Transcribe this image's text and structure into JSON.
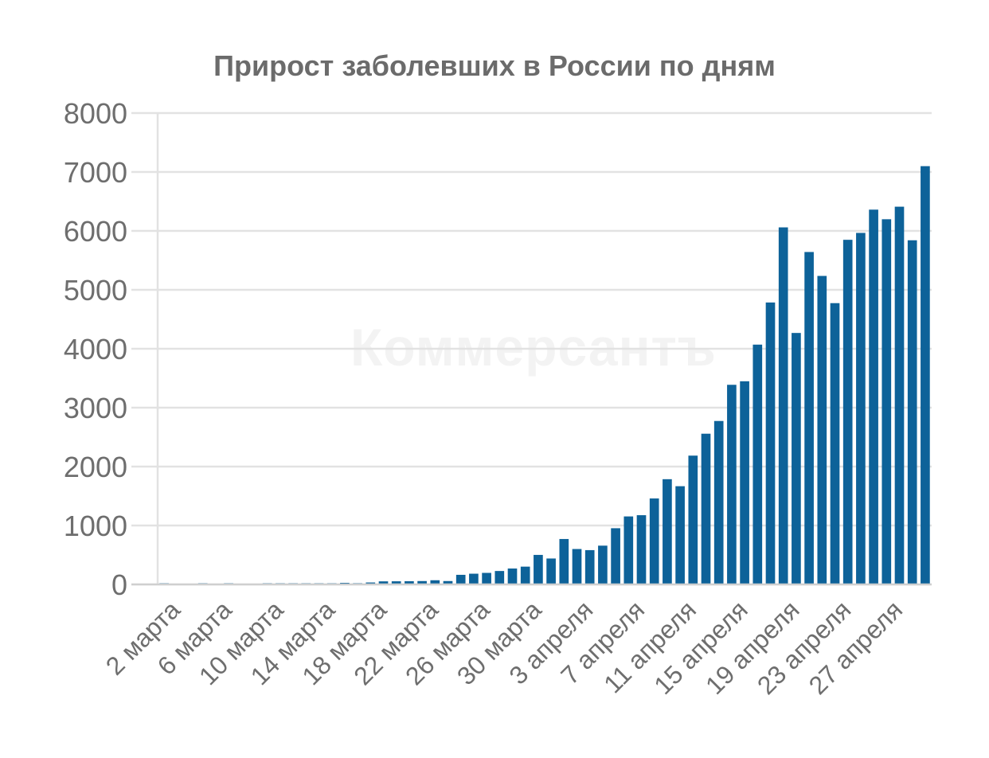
{
  "chart_data": {
    "type": "bar",
    "title": "Прирост заболевших в России по дням",
    "watermark": "Коммерсантъ",
    "bar_color": "#0d6299",
    "grid": true,
    "ylim": [
      0,
      8000
    ],
    "yticks": [
      0,
      1000,
      2000,
      3000,
      4000,
      5000,
      6000,
      7000,
      8000
    ],
    "xtick_labels": [
      "2 марта",
      "6 марта",
      "10 марта",
      "14 марта",
      "18 марта",
      "22 марта",
      "26 марта",
      "30 марта",
      "3 апреля",
      "7 апреля",
      "11 апреля",
      "15 апреля",
      "19 апреля",
      "23 апреля",
      "27 апреля"
    ],
    "categories": [
      "2 марта",
      "3 марта",
      "4 марта",
      "5 марта",
      "6 марта",
      "7 марта",
      "8 марта",
      "9 марта",
      "10 марта",
      "11 марта",
      "12 марта",
      "13 марта",
      "14 марта",
      "15 марта",
      "16 марта",
      "17 марта",
      "18 марта",
      "19 марта",
      "20 марта",
      "21 марта",
      "22 марта",
      "23 марта",
      "24 марта",
      "25 марта",
      "26 марта",
      "27 марта",
      "28 марта",
      "29 марта",
      "30 марта",
      "31 марта",
      "1 апреля",
      "2 апреля",
      "3 апреля",
      "4 апреля",
      "5 апреля",
      "6 апреля",
      "7 апреля",
      "8 апреля",
      "9 апреля",
      "10 апреля",
      "11 апреля",
      "12 апреля",
      "13 апреля",
      "14 апреля",
      "15 апреля",
      "16 апреля",
      "17 апреля",
      "18 апреля",
      "19 апреля",
      "20 апреля",
      "21 апреля",
      "22 апреля",
      "23 апреля",
      "24 апреля",
      "25 апреля",
      "26 апреля",
      "27 апреля",
      "28 апреля",
      "29 апреля",
      "30 апреля"
    ],
    "values": [
      2,
      0,
      0,
      1,
      0,
      4,
      0,
      0,
      3,
      3,
      8,
      6,
      11,
      14,
      27,
      21,
      33,
      52,
      53,
      54,
      57,
      71,
      57,
      163,
      182,
      196,
      228,
      270,
      302,
      501,
      440,
      771,
      601,
      582,
      658,
      954,
      1154,
      1175,
      1459,
      1786,
      1667,
      2186,
      2558,
      2774,
      3388,
      3448,
      4070,
      4785,
      6060,
      4268,
      5642,
      5236,
      4774,
      5849,
      5966,
      6361,
      6198,
      6411,
      5841,
      7099
    ]
  }
}
